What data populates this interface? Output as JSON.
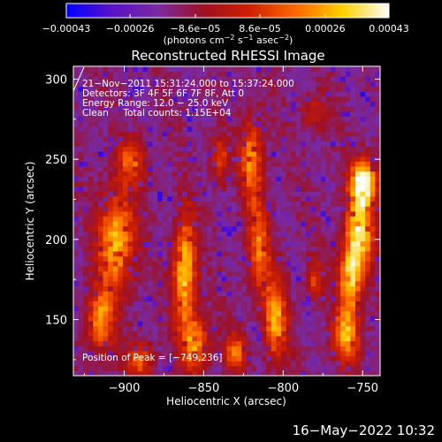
{
  "chart_data": {
    "type": "heatmap",
    "title": "Reconstructed RHESSI Image",
    "xlabel": "Heliocentric X (arcsec)",
    "ylabel": "Heliocentric Y (arcsec)",
    "xlim": [
      -932,
      -739
    ],
    "ylim": [
      115,
      308
    ],
    "x_ticks": [
      -900,
      -850,
      -800,
      -750
    ],
    "x_tick_labels": [
      "−900",
      "−850",
      "−800",
      "−750"
    ],
    "y_ticks": [
      150,
      200,
      250,
      300
    ],
    "y_tick_labels": [
      "150",
      "200",
      "250",
      "300"
    ],
    "colorbar": {
      "min": -0.00043,
      "max": 0.00043,
      "ticks": [
        -0.00043,
        -0.00026,
        -8.6e-05,
        8.6e-05,
        0.00026,
        0.00043
      ],
      "tick_labels": [
        "−0.00043",
        "−0.00026",
        "−8.6e−05",
        "8.6e−05",
        "0.00026",
        "0.00043"
      ],
      "unit_parts": [
        "(photons cm",
        "−2",
        " s",
        "−1",
        " asec",
        "−2",
        ")"
      ],
      "colormap": [
        "#0000ff",
        "#5a12c8",
        "#7a2aa0",
        "#a01020",
        "#d02000",
        "#ff6a00",
        "#ffd000",
        "#ffffff"
      ]
    },
    "annotations": [
      "21−Nov−2011 15:31:24.000 to 15:37:24.000",
      "Detectors: 3F 4F 5F 6F 7F 8F, Att 0",
      "Energy Range: 12.0 − 25.0 keV",
      "Clean     Total counts: 1.15E+04"
    ],
    "peak_label": "Position of Peak = [−749,236]",
    "peak_position": [
      -749,
      236
    ]
  },
  "footer": {
    "timestamp": "16−May−2022 10:32"
  }
}
